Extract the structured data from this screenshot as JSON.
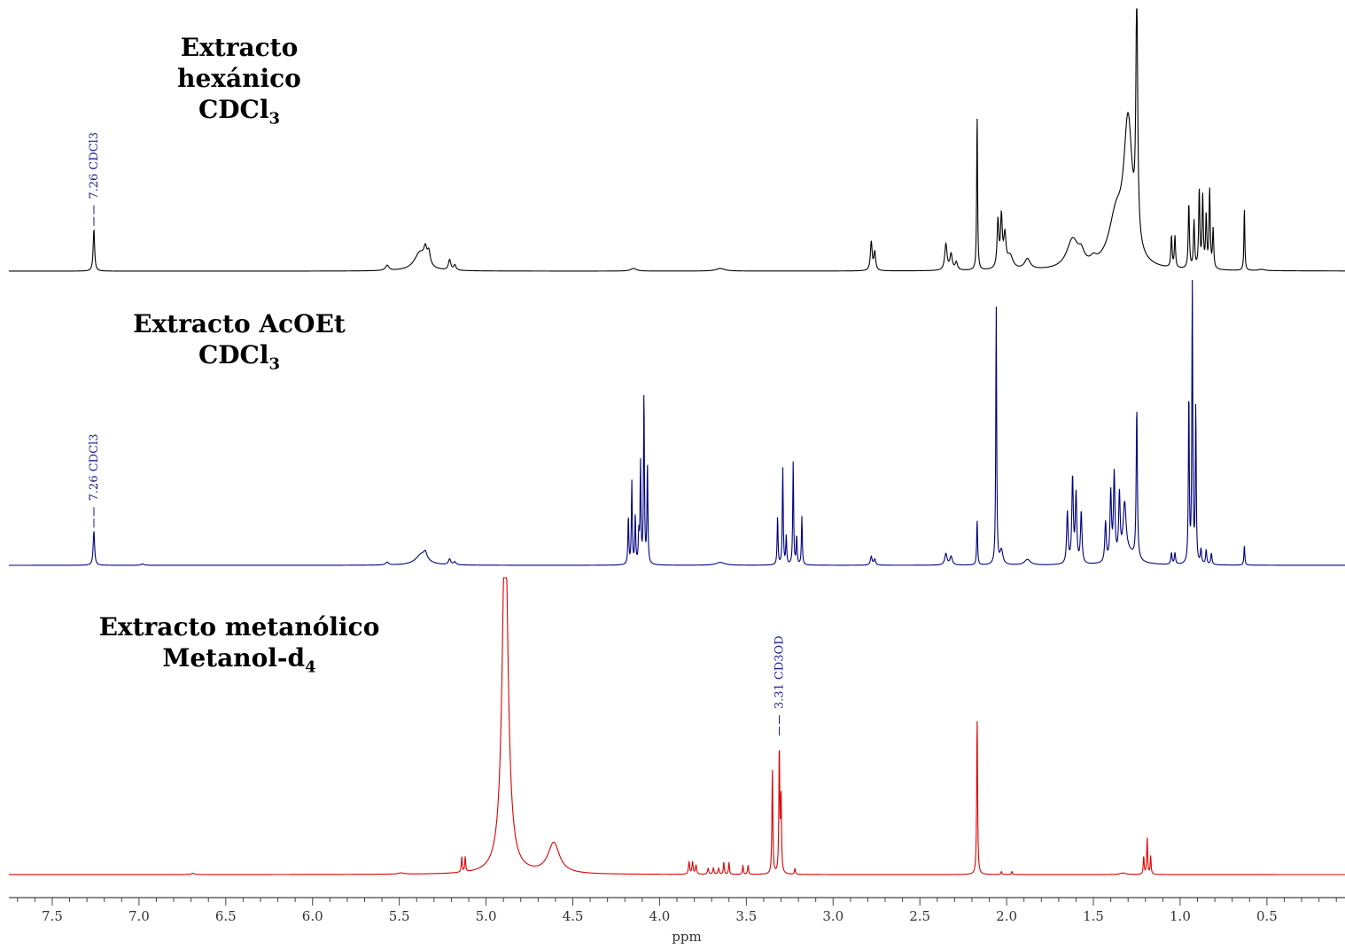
{
  "spectra": [
    {
      "title": "Extracto hexánico",
      "solvent_prefix": "CDCl",
      "solvent_sub": "3"
    },
    {
      "title": "Extracto AcOEt",
      "solvent_prefix": "CDCl",
      "solvent_sub": "3"
    },
    {
      "title": "Extracto metanólico",
      "solvent_prefix": "Metanol-d",
      "solvent_sub": "4"
    }
  ],
  "chart_data": {
    "type": "line",
    "xlabel": "ppm",
    "xlim": [
      7.75,
      0.05
    ],
    "x_reversed": true,
    "x_ticks": [
      "7.5",
      "7.0",
      "6.5",
      "6.0",
      "5.5",
      "5.0",
      "4.5",
      "4.0",
      "3.5",
      "3.0",
      "2.5",
      "2.0",
      "1.5",
      "1.0",
      "0.5"
    ],
    "series": [
      {
        "name": "Extracto hexánico",
        "color": "#000000",
        "reference": {
          "ppm": 7.26,
          "label": "7.26 CDCl3"
        },
        "peaks": [
          [
            7.26,
            0.16,
            0.005
          ],
          [
            5.57,
            0.02,
            0.012
          ],
          [
            5.38,
            0.07,
            0.04
          ],
          [
            5.35,
            0.05,
            0.01
          ],
          [
            5.33,
            0.05,
            0.01
          ],
          [
            5.21,
            0.04,
            0.008
          ],
          [
            5.18,
            0.02,
            0.008
          ],
          [
            4.15,
            0.01,
            0.02
          ],
          [
            3.65,
            0.01,
            0.03
          ],
          [
            2.78,
            0.11,
            0.006
          ],
          [
            2.76,
            0.07,
            0.006
          ],
          [
            2.35,
            0.1,
            0.008
          ],
          [
            2.32,
            0.06,
            0.008
          ],
          [
            2.29,
            0.03,
            0.008
          ],
          [
            2.17,
            0.6,
            0.003
          ],
          [
            2.05,
            0.18,
            0.006
          ],
          [
            2.03,
            0.19,
            0.006
          ],
          [
            2.01,
            0.12,
            0.008
          ],
          [
            1.98,
            0.05,
            0.02
          ],
          [
            1.88,
            0.04,
            0.02
          ],
          [
            1.62,
            0.11,
            0.04
          ],
          [
            1.57,
            0.04,
            0.02
          ],
          [
            1.5,
            0.02,
            0.02
          ],
          [
            1.3,
            0.53,
            0.03
          ],
          [
            1.37,
            0.18,
            0.05
          ],
          [
            1.25,
            0.94,
            0.006
          ],
          [
            1.05,
            0.12,
            0.004
          ],
          [
            1.03,
            0.12,
            0.004
          ],
          [
            0.95,
            0.25,
            0.004
          ],
          [
            0.92,
            0.18,
            0.004
          ],
          [
            0.89,
            0.3,
            0.004
          ],
          [
            0.87,
            0.27,
            0.004
          ],
          [
            0.85,
            0.2,
            0.004
          ],
          [
            0.83,
            0.3,
            0.004
          ],
          [
            0.81,
            0.15,
            0.004
          ],
          [
            0.63,
            0.24,
            0.003
          ],
          [
            0.53,
            0.005,
            0.02
          ]
        ]
      },
      {
        "name": "Extracto AcOEt",
        "color": "#000080",
        "reference": {
          "ppm": 7.26,
          "label": "7.26 CDCl3"
        },
        "peaks": [
          [
            7.26,
            0.12,
            0.005
          ],
          [
            6.98,
            0.005,
            0.01
          ],
          [
            5.57,
            0.01,
            0.01
          ],
          [
            5.37,
            0.04,
            0.04
          ],
          [
            5.35,
            0.02,
            0.01
          ],
          [
            5.21,
            0.02,
            0.008
          ],
          [
            5.18,
            0.01,
            0.008
          ],
          [
            4.18,
            0.17,
            0.003
          ],
          [
            4.16,
            0.29,
            0.003
          ],
          [
            4.14,
            0.17,
            0.003
          ],
          [
            4.12,
            0.1,
            0.003
          ],
          [
            4.11,
            0.35,
            0.003
          ],
          [
            4.09,
            0.6,
            0.003
          ],
          [
            4.07,
            0.35,
            0.003
          ],
          [
            3.65,
            0.01,
            0.03
          ],
          [
            3.32,
            0.17,
            0.003
          ],
          [
            3.29,
            0.34,
            0.003
          ],
          [
            3.27,
            0.1,
            0.003
          ],
          [
            3.23,
            0.36,
            0.003
          ],
          [
            3.21,
            0.1,
            0.003
          ],
          [
            3.18,
            0.17,
            0.003
          ],
          [
            2.78,
            0.03,
            0.006
          ],
          [
            2.76,
            0.02,
            0.006
          ],
          [
            2.35,
            0.04,
            0.008
          ],
          [
            2.32,
            0.03,
            0.008
          ],
          [
            2.17,
            0.16,
            0.003
          ],
          [
            2.06,
            0.91,
            0.003
          ],
          [
            2.03,
            0.05,
            0.01
          ],
          [
            1.88,
            0.02,
            0.02
          ],
          [
            1.65,
            0.18,
            0.005
          ],
          [
            1.62,
            0.3,
            0.005
          ],
          [
            1.6,
            0.24,
            0.005
          ],
          [
            1.57,
            0.18,
            0.005
          ],
          [
            1.43,
            0.14,
            0.005
          ],
          [
            1.4,
            0.24,
            0.005
          ],
          [
            1.38,
            0.3,
            0.005
          ],
          [
            1.35,
            0.22,
            0.005
          ],
          [
            1.32,
            0.18,
            0.01
          ],
          [
            1.25,
            0.53,
            0.004
          ],
          [
            1.3,
            0.04,
            0.05
          ],
          [
            1.05,
            0.04,
            0.004
          ],
          [
            1.03,
            0.04,
            0.004
          ],
          [
            0.95,
            0.6,
            0.003
          ],
          [
            0.93,
            1.0,
            0.003
          ],
          [
            0.91,
            0.55,
            0.003
          ],
          [
            0.88,
            0.05,
            0.004
          ],
          [
            0.85,
            0.05,
            0.004
          ],
          [
            0.82,
            0.04,
            0.004
          ],
          [
            0.63,
            0.07,
            0.003
          ]
        ]
      },
      {
        "name": "Extracto metanólico",
        "color": "#e00000",
        "reference": {
          "ppm": 3.31,
          "label": "3.31 CD3OD"
        },
        "peaks": [
          [
            6.69,
            0.004,
            0.01
          ],
          [
            5.49,
            0.004,
            0.02
          ],
          [
            5.14,
            0.05,
            0.003
          ],
          [
            5.12,
            0.05,
            0.003
          ],
          [
            4.89,
            1.2,
            0.02
          ],
          [
            4.61,
            0.1,
            0.04
          ],
          [
            3.83,
            0.04,
            0.004
          ],
          [
            3.81,
            0.04,
            0.004
          ],
          [
            3.79,
            0.03,
            0.004
          ],
          [
            3.72,
            0.02,
            0.004
          ],
          [
            3.69,
            0.02,
            0.004
          ],
          [
            3.66,
            0.02,
            0.004
          ],
          [
            3.63,
            0.04,
            0.003
          ],
          [
            3.6,
            0.04,
            0.003
          ],
          [
            3.52,
            0.03,
            0.003
          ],
          [
            3.49,
            0.03,
            0.003
          ],
          [
            3.35,
            0.35,
            0.003
          ],
          [
            3.31,
            0.42,
            0.003
          ],
          [
            3.3,
            0.25,
            0.003
          ],
          [
            3.22,
            0.02,
            0.003
          ],
          [
            2.17,
            0.52,
            0.003
          ],
          [
            2.03,
            0.01,
            0.003
          ],
          [
            1.97,
            0.01,
            0.003
          ],
          [
            1.21,
            0.06,
            0.003
          ],
          [
            1.19,
            0.12,
            0.003
          ],
          [
            1.17,
            0.06,
            0.003
          ],
          [
            1.33,
            0.005,
            0.02
          ]
        ]
      }
    ]
  }
}
